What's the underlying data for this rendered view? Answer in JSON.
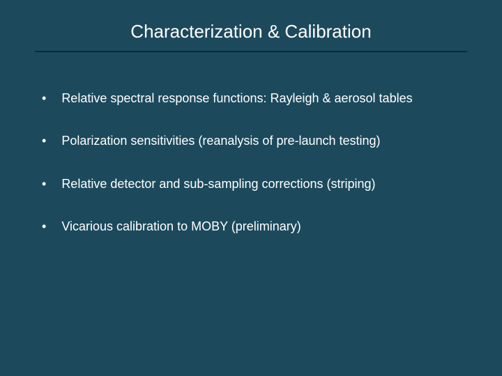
{
  "slide": {
    "title": "Characterization & Calibration",
    "background_color": "#1c4a5c",
    "divider_color": "#0a2a38",
    "text_color": "#ffffff",
    "title_fontsize": 26,
    "bullet_fontsize": 18,
    "bullets": [
      "Relative spectral response functions: Rayleigh & aerosol tables",
      "Polarization sensitivities (reanalysis of pre-launch testing)",
      "Relative detector and sub-sampling corrections (striping)",
      "Vicarious calibration to MOBY (preliminary)"
    ]
  }
}
